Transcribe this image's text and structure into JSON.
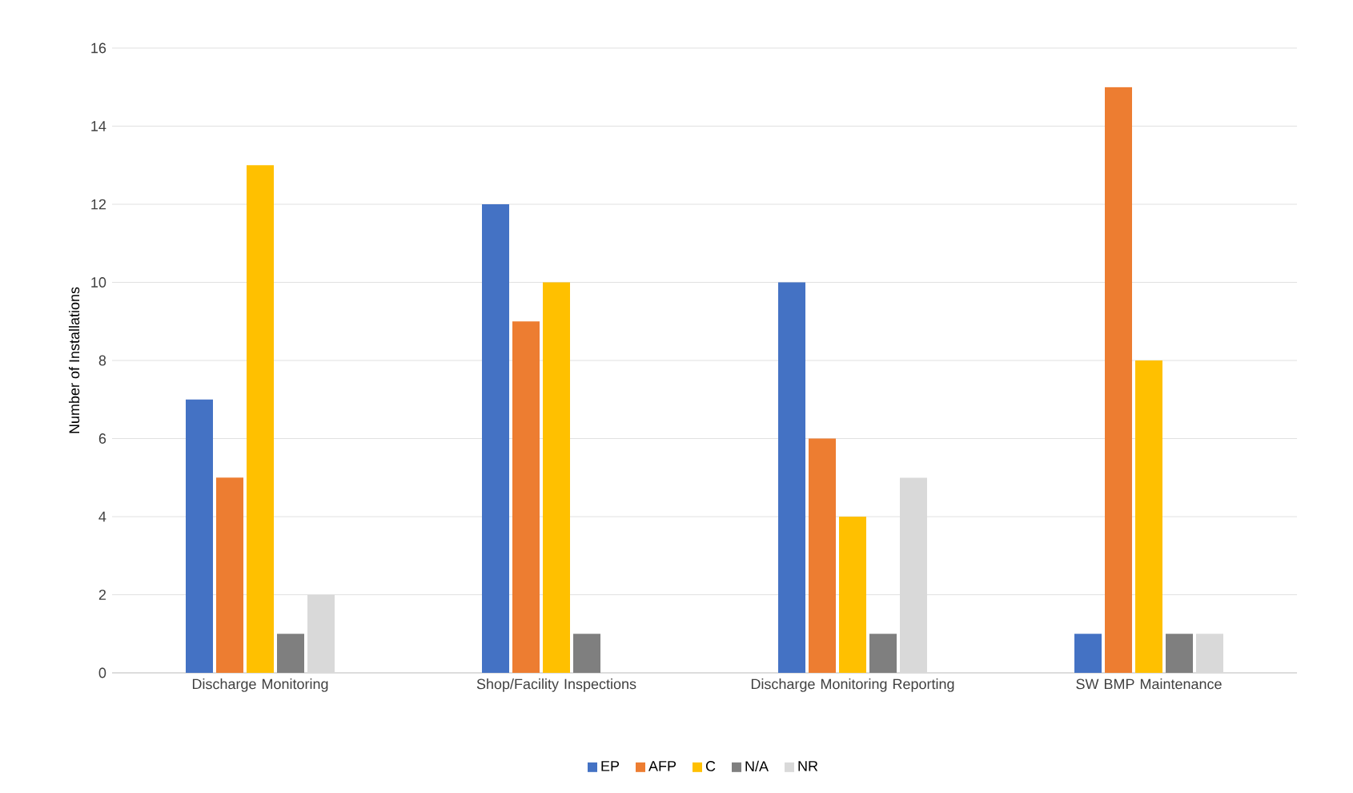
{
  "chart_data": {
    "type": "bar",
    "ylabel": "Number of Installations",
    "categories": [
      "Discharge Monitoring",
      "Shop/Facility Inspections",
      "Discharge Monitoring Reporting",
      "SW BMP Maintenance"
    ],
    "series": [
      {
        "name": "EP",
        "color": "#4472c4",
        "values": [
          7,
          12,
          10,
          1
        ]
      },
      {
        "name": "AFP",
        "color": "#ed7d31",
        "values": [
          5,
          9,
          6,
          15
        ]
      },
      {
        "name": "C",
        "color": "#ffc000",
        "values": [
          13,
          10,
          4,
          8
        ]
      },
      {
        "name": "N/A",
        "color": "#7f7f7f",
        "values": [
          1,
          1,
          1,
          1
        ]
      },
      {
        "name": "NR",
        "color": "#d9d9d9",
        "values": [
          2,
          null,
          5,
          1
        ]
      }
    ],
    "ylim": [
      0,
      16
    ],
    "yticks": [
      0,
      2,
      4,
      6,
      8,
      10,
      12,
      14,
      16
    ],
    "grid": "y",
    "legend": "bottom"
  }
}
